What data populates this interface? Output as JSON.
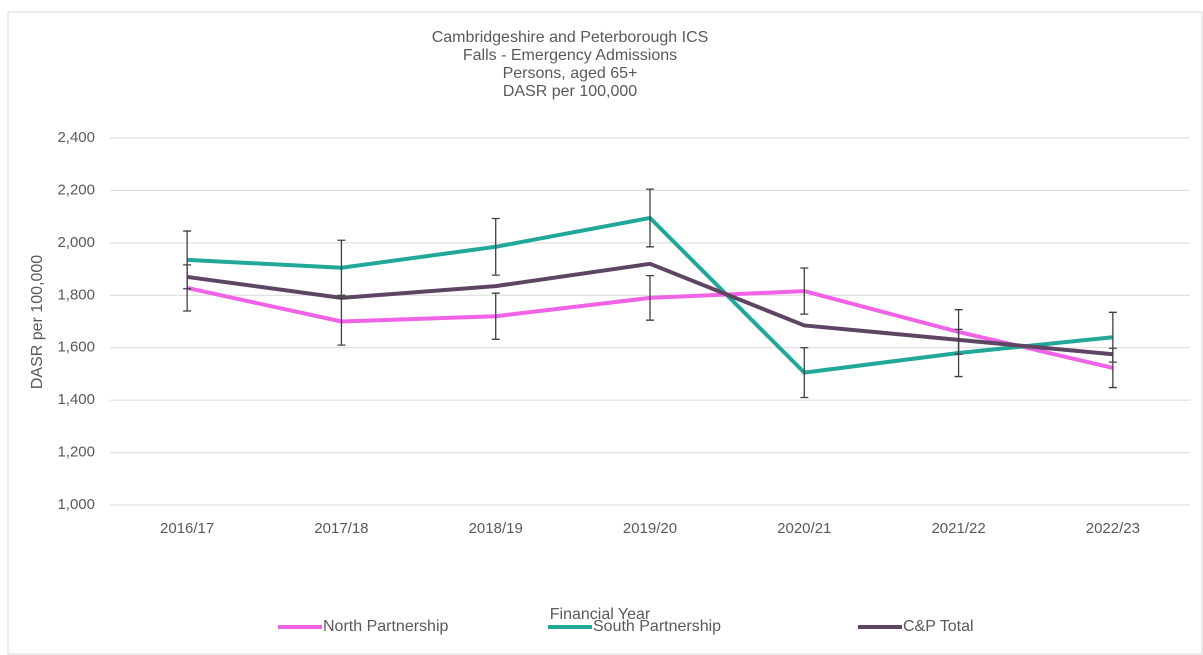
{
  "chart_data": {
    "type": "line",
    "title": [
      "Cambridgeshire and Peterborough ICS",
      "Falls - Emergency Admissions",
      "Persons, aged 65+",
      "DASR per 100,000"
    ],
    "x_label": "Financial Year",
    "y_label": "DASR per 100,000",
    "categories": [
      "2016/17",
      "2017/18",
      "2018/19",
      "2019/20",
      "2020/21",
      "2021/22",
      "2022/23"
    ],
    "series": [
      {
        "name": "North Partnership",
        "color": "#f062e6",
        "values": [
          1828,
          1700,
          1720,
          1790,
          1816,
          1660,
          1523
        ],
        "errors": [
          88,
          90,
          88,
          85,
          88,
          85,
          75
        ]
      },
      {
        "name": "South Partnership",
        "color": "#21a89a",
        "values": [
          1935,
          1905,
          1985,
          2095,
          1505,
          1580,
          1640
        ],
        "errors": [
          110,
          105,
          108,
          110,
          95,
          90,
          95
        ]
      },
      {
        "name": "C&P Total",
        "color": "#5e4563",
        "values": [
          1870,
          1790,
          1835,
          1920,
          1685,
          1630,
          1575
        ]
      }
    ],
    "ylim": [
      1000,
      2400
    ],
    "yticks": [
      {
        "value": 1000,
        "label": "1,000"
      },
      {
        "value": 1200,
        "label": "1,200"
      },
      {
        "value": 1400,
        "label": "1,400"
      },
      {
        "value": 1600,
        "label": "1,600"
      },
      {
        "value": 1800,
        "label": "1,800"
      },
      {
        "value": 2000,
        "label": "2,000"
      },
      {
        "value": 2200,
        "label": "2,200"
      },
      {
        "value": 2400,
        "label": "2,400"
      }
    ],
    "grid": true,
    "legend": "bottom"
  }
}
